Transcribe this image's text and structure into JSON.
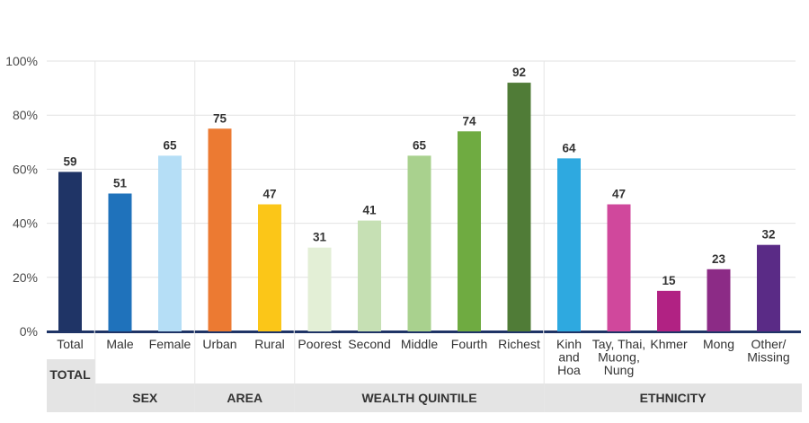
{
  "chart_data": {
    "type": "bar",
    "ylim": [
      0,
      100
    ],
    "yticks": [
      "0%",
      "20%",
      "40%",
      "60%",
      "80%",
      "100%"
    ],
    "grid": true,
    "bars": [
      {
        "label": [
          "Total"
        ],
        "value": 59,
        "color": "#1f3466",
        "group": 0
      },
      {
        "label": [
          "Male"
        ],
        "value": 51,
        "color": "#1f72bb",
        "group": 1
      },
      {
        "label": [
          "Female"
        ],
        "value": 65,
        "color": "#b5def6",
        "group": 1
      },
      {
        "label": [
          "Urban"
        ],
        "value": 75,
        "color": "#ec7a32",
        "group": 2
      },
      {
        "label": [
          "Rural"
        ],
        "value": 47,
        "color": "#fbc618",
        "group": 2
      },
      {
        "label": [
          "Poorest"
        ],
        "value": 31,
        "color": "#e3efd6",
        "group": 3
      },
      {
        "label": [
          "Second"
        ],
        "value": 41,
        "color": "#c6e0b4",
        "group": 3
      },
      {
        "label": [
          "Middle"
        ],
        "value": 65,
        "color": "#a9d18e",
        "group": 3
      },
      {
        "label": [
          "Fourth"
        ],
        "value": 74,
        "color": "#6fab41",
        "group": 3
      },
      {
        "label": [
          "Richest"
        ],
        "value": 92,
        "color": "#507c37",
        "group": 3
      },
      {
        "label": [
          "Kinh",
          "and",
          "Hoa"
        ],
        "value": 64,
        "color": "#2ea9e0",
        "group": 4
      },
      {
        "label": [
          "Tay, Thai,",
          "Muong,",
          "Nung"
        ],
        "value": 47,
        "color": "#d0489c",
        "group": 4
      },
      {
        "label": [
          "Khmer"
        ],
        "value": 15,
        "color": "#b12283",
        "group": 4
      },
      {
        "label": [
          "Mong"
        ],
        "value": 23,
        "color": "#8c2b86",
        "group": 4
      },
      {
        "label": [
          "Other/",
          "Missing"
        ],
        "value": 32,
        "color": "#5a2b86",
        "group": 4
      }
    ],
    "groups": [
      {
        "name": "TOTAL"
      },
      {
        "name": "SEX"
      },
      {
        "name": "AREA"
      },
      {
        "name": "WEALTH QUINTILE"
      },
      {
        "name": "ETHNICITY"
      }
    ]
  }
}
